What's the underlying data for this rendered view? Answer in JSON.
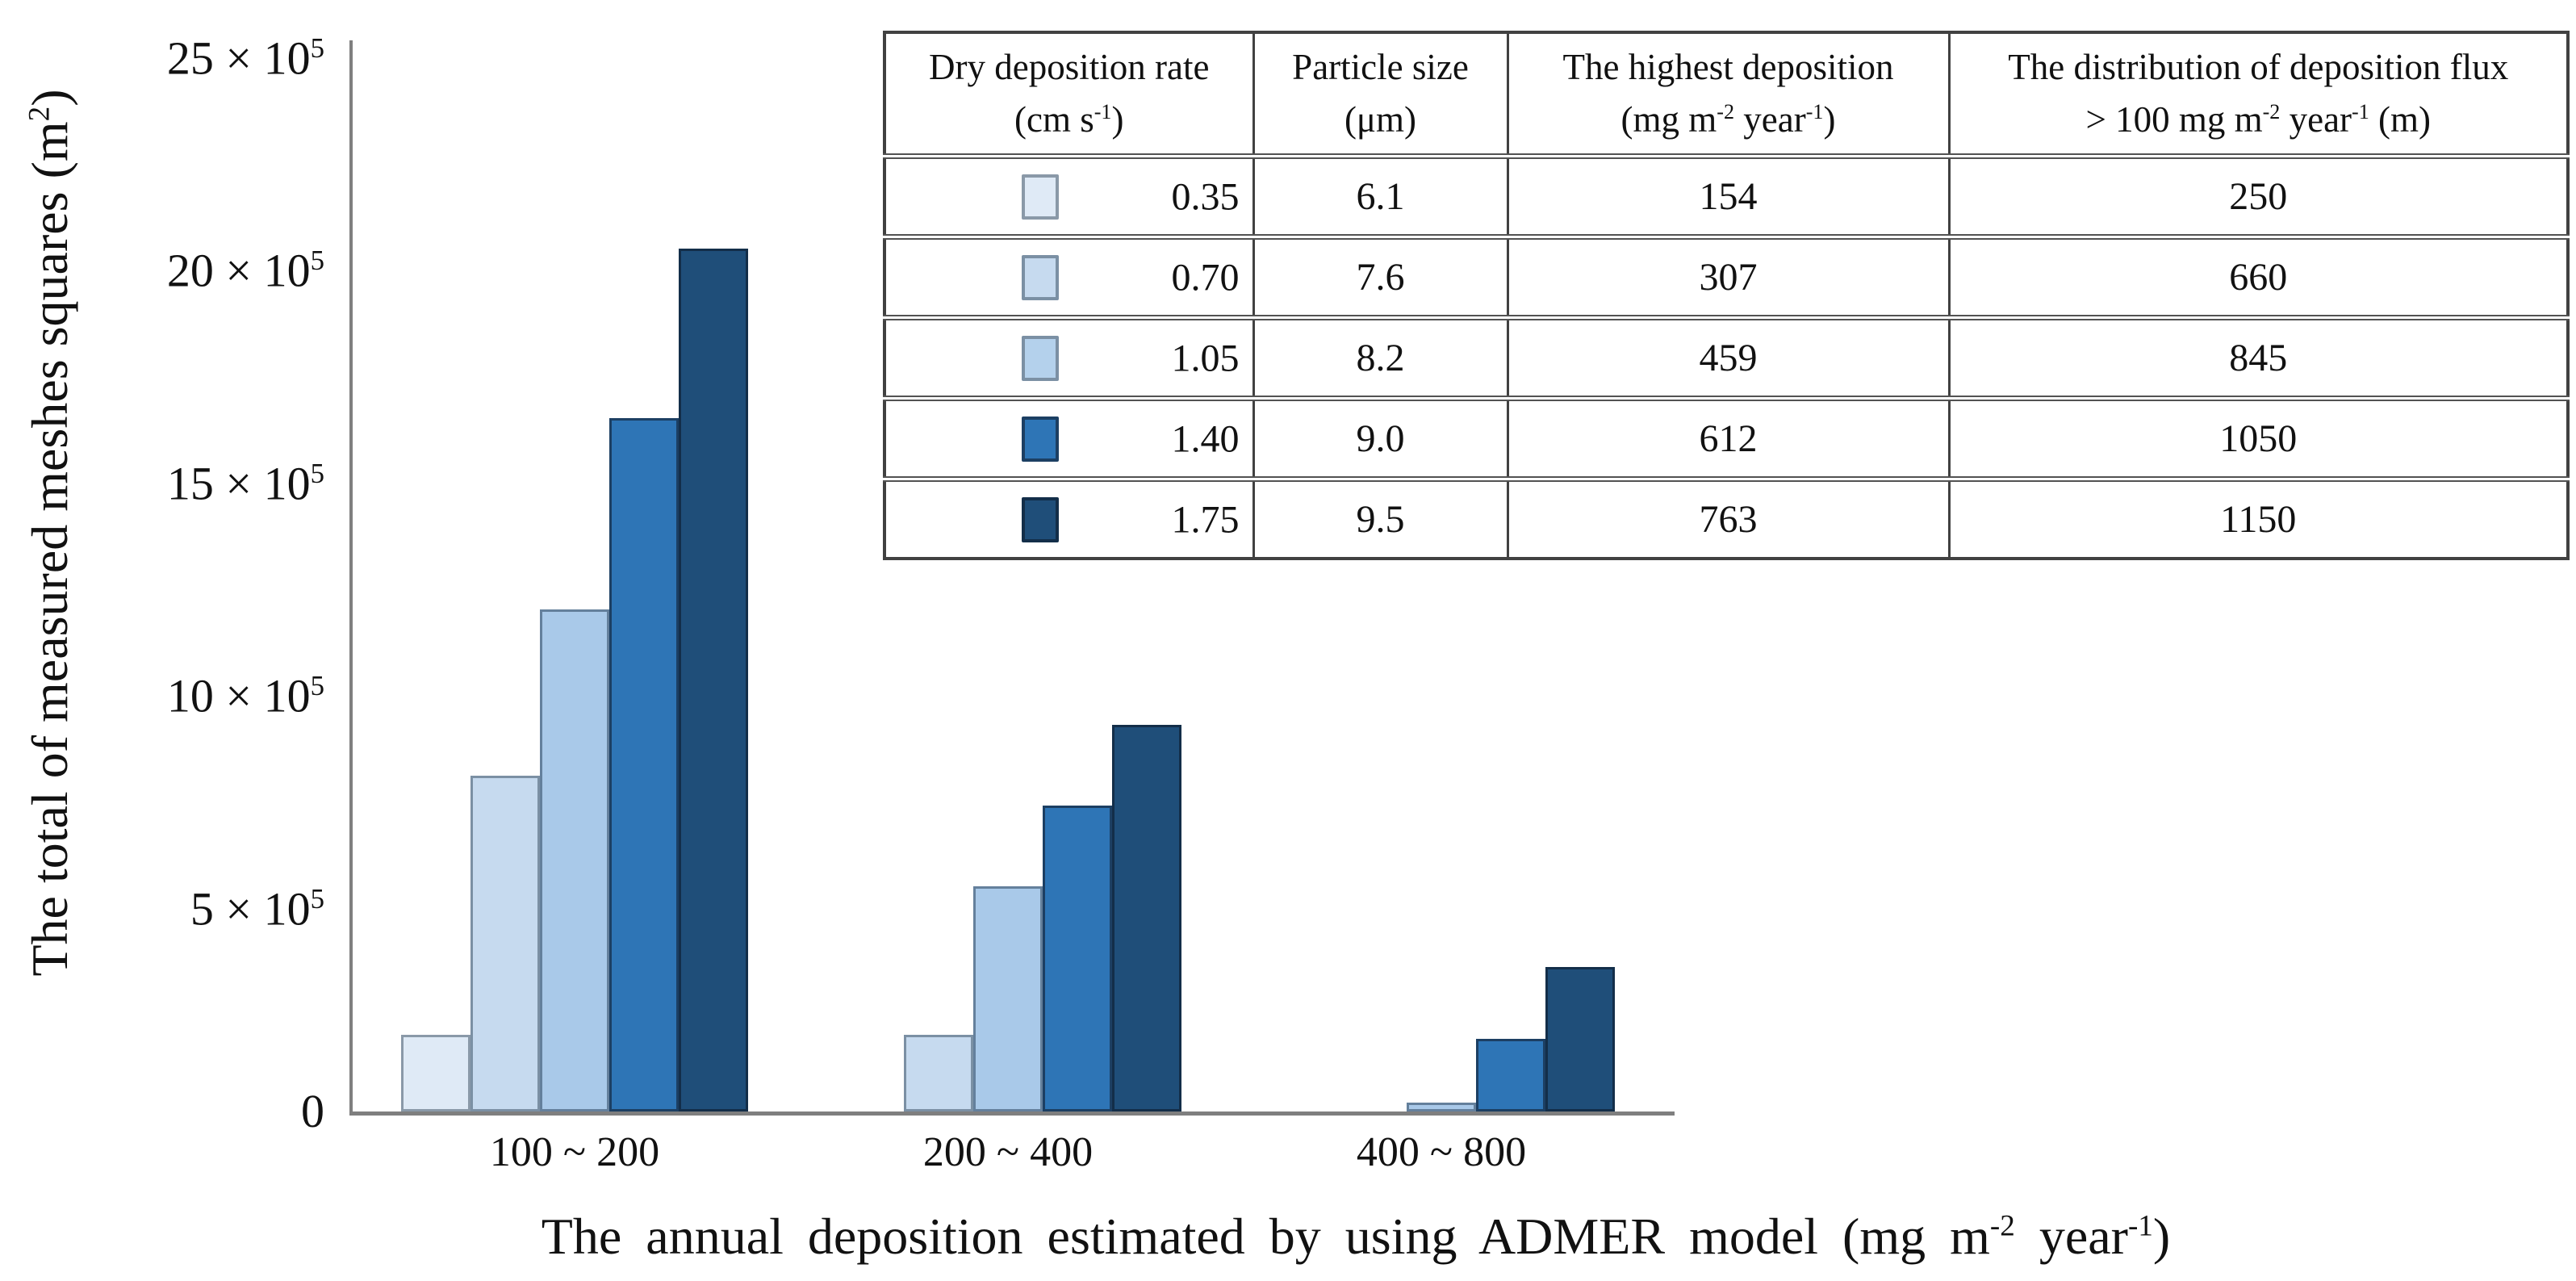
{
  "figure": {
    "background": "#ffffff",
    "text_color": "#111111",
    "axis_color": "#7f7f7f",
    "table_border_color": "#414141"
  },
  "chart_data": {
    "type": "bar",
    "title": "",
    "categories": [
      "100 ~ 200",
      "200 ~ 400",
      "400 ~ 800"
    ],
    "xlabel": "The annual deposition estimated by using ADMER model (mg m-2 year-1)",
    "ylabel": "The total of measured meshes squares (m2)",
    "value_unit": "x 10^5 m^2",
    "ylim": [
      0,
      25
    ],
    "grid": false,
    "legend_position": "table-top-right",
    "series": [
      {
        "name": "0.35",
        "values": [
          1.8,
          0,
          0
        ],
        "fill": "#dfeaf6",
        "border": "#8a99a8"
      },
      {
        "name": "0.70",
        "values": [
          7.9,
          1.8,
          0
        ],
        "fill": "#c6daef",
        "border": "#7b90a4"
      },
      {
        "name": "1.05",
        "values": [
          11.8,
          5.3,
          0.2
        ],
        "fill": "#a9c9e9",
        "border": "#64809c"
      },
      {
        "name": "1.40",
        "values": [
          16.3,
          7.2,
          1.7
        ],
        "fill": "#2e75b6",
        "border": "#1c3f63"
      },
      {
        "name": "1.75",
        "values": [
          20.3,
          9.1,
          3.4
        ],
        "fill": "#1f4e79",
        "border": "#132e49"
      }
    ],
    "y_ticks": [
      {
        "v": 25,
        "segs": [
          {
            "t": "25 × 10"
          },
          {
            "sup": "5"
          }
        ]
      },
      {
        "v": 20,
        "segs": [
          {
            "t": "20 × 10"
          },
          {
            "sup": "5"
          }
        ]
      },
      {
        "v": 15,
        "segs": [
          {
            "t": "15 × 10"
          },
          {
            "sup": "5"
          }
        ]
      },
      {
        "v": 10,
        "segs": [
          {
            "t": "10 × 10"
          },
          {
            "sup": "5"
          }
        ]
      },
      {
        "v": 5,
        "segs": [
          {
            "t": "5 × 10"
          },
          {
            "sup": "5"
          }
        ]
      },
      {
        "v": 0,
        "segs": [
          {
            "t": "0"
          }
        ]
      }
    ],
    "xlabel_segs": [
      {
        "t": "The annual deposition estimated by using ADMER model (mg m"
      },
      {
        "sup": "-2"
      },
      {
        "t": " year"
      },
      {
        "sup": "-1"
      },
      {
        "t": ")"
      }
    ],
    "ylabel_segs": [
      {
        "t": "The total of measured meshes squares (m"
      },
      {
        "sup": "2"
      },
      {
        "t": ")"
      }
    ]
  },
  "table": {
    "columns": [
      {
        "line1": [
          {
            "t": "Dry deposition rate"
          }
        ],
        "line2": [
          {
            "t": "(cm s"
          },
          {
            "sup": "-1"
          },
          {
            "t": ")"
          }
        ]
      },
      {
        "line1": [
          {
            "t": "Particle size"
          }
        ],
        "line2": [
          {
            "t": "(μm)"
          }
        ]
      },
      {
        "line1": [
          {
            "t": "The highest deposition"
          }
        ],
        "line2": [
          {
            "t": "(mg m"
          },
          {
            "sup": "-2"
          },
          {
            "t": " year"
          },
          {
            "sup": "-1"
          },
          {
            "t": ")"
          }
        ]
      },
      {
        "line1": [
          {
            "t": "The distribution of deposition flux"
          }
        ],
        "line2": [
          {
            "t": "> 100  mg m"
          },
          {
            "sup": "-2"
          },
          {
            "t": " year"
          },
          {
            "sup": "-1"
          },
          {
            "t": " (m)"
          }
        ]
      }
    ],
    "rows": [
      {
        "swatch_fill": "#dfeaf6",
        "swatch_border": "#8a99a8",
        "rate": "0.35",
        "particle_size": "6.1",
        "highest_deposition": "154",
        "distribution": "250"
      },
      {
        "swatch_fill": "#c6daef",
        "swatch_border": "#7b90a4",
        "rate": "0.70",
        "particle_size": "7.6",
        "highest_deposition": "307",
        "distribution": "660"
      },
      {
        "swatch_fill": "#b4d1ec",
        "swatch_border": "#7b90a4",
        "rate": "1.05",
        "particle_size": "8.2",
        "highest_deposition": "459",
        "distribution": "845"
      },
      {
        "swatch_fill": "#2e75b6",
        "swatch_border": "#1c3f63",
        "rate": "1.40",
        "particle_size": "9.0",
        "highest_deposition": "612",
        "distribution": "1050"
      },
      {
        "swatch_fill": "#1f4e79",
        "swatch_border": "#132e49",
        "rate": "1.75",
        "particle_size": "9.5",
        "highest_deposition": "763",
        "distribution": "1150"
      }
    ]
  }
}
